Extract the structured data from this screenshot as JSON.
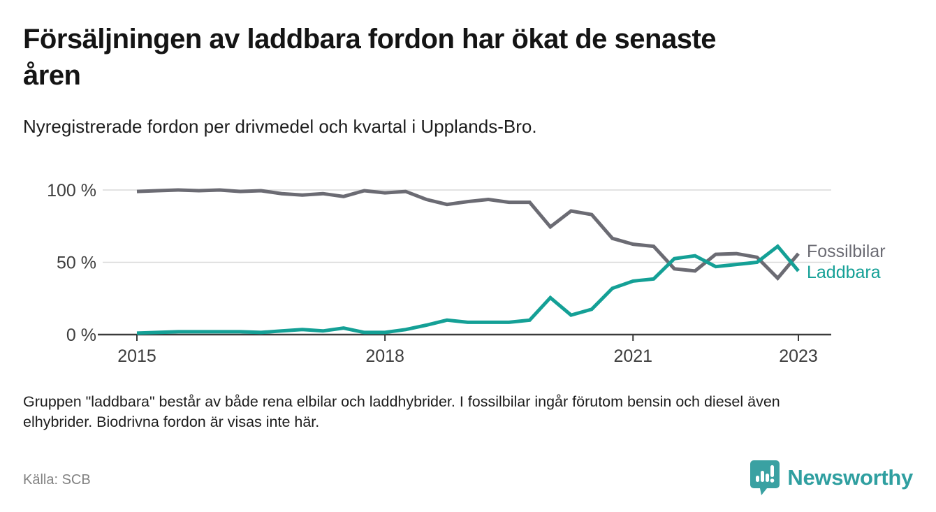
{
  "header": {
    "title_lines": [
      "Försäljningen av laddbara fordon har ökat de senaste",
      "åren"
    ],
    "subtitle": "Nyregistrerade fordon per drivmedel och kvartal i Upplands-Bro."
  },
  "footer": {
    "note_lines": [
      "Gruppen \"laddbara\" består av både rena elbilar och laddhybrider. I fossilbilar ingår förutom bensin och diesel även",
      "elhybrider. Biodrivna fordon är visas inte här."
    ],
    "source": "Källa: SCB",
    "brand_name": "Newsworthy"
  },
  "colors": {
    "fossil_gray": "#6b6b73",
    "laddbara_teal": "#14a096",
    "grid": "#d9d9d9",
    "axis": "#3b3b3b",
    "tick_text": "#3d3d3d",
    "logo_teal": "#3aa1a2",
    "brand_text_teal": "#2f9fa0"
  },
  "chart_data": {
    "type": "line",
    "title": "Nyregistrerade fordon per drivmedel och kvartal i Upplands-Bro",
    "xlabel": "",
    "ylabel": "",
    "ylim": [
      0,
      100
    ],
    "grid": "horizontal",
    "legend_position": "right-of-line-end",
    "categories": [
      "2015 Q1",
      "2015 Q2",
      "2015 Q3",
      "2015 Q4",
      "2016 Q1",
      "2016 Q2",
      "2016 Q3",
      "2016 Q4",
      "2017 Q1",
      "2017 Q2",
      "2017 Q3",
      "2017 Q4",
      "2018 Q1",
      "2018 Q2",
      "2018 Q3",
      "2018 Q4",
      "2019 Q1",
      "2019 Q2",
      "2019 Q3",
      "2019 Q4",
      "2020 Q1",
      "2020 Q2",
      "2020 Q3",
      "2020 Q4",
      "2021 Q1",
      "2021 Q2",
      "2021 Q3",
      "2021 Q4",
      "2022 Q1",
      "2022 Q2",
      "2022 Q3",
      "2022 Q4",
      "2023 Q1"
    ],
    "series": [
      {
        "name": "Fossilbilar",
        "color": "#6b6b73",
        "values": [
          99,
          99.5,
          100,
          99.5,
          100,
          99,
          99.5,
          97.5,
          96.5,
          97.5,
          95.5,
          99.5,
          98,
          99,
          93.5,
          90,
          92,
          93.5,
          91.5,
          91.5,
          74.5,
          85.5,
          83,
          66.5,
          62.5,
          61,
          45.5,
          44,
          55.5,
          56,
          53.5,
          39,
          56
        ]
      },
      {
        "name": "Laddbara",
        "color": "#14a096",
        "values": [
          1,
          1.5,
          2,
          2,
          2,
          2,
          1.5,
          2.5,
          3.5,
          2.5,
          4.5,
          1.5,
          1.5,
          3.5,
          6.5,
          10,
          8.5,
          8.5,
          8.5,
          10,
          25.5,
          13.5,
          17.5,
          32,
          37,
          38.5,
          52.5,
          54.5,
          47,
          48.5,
          50,
          61,
          44
        ]
      }
    ],
    "x_ticks": [
      {
        "index": 0,
        "label": "2015"
      },
      {
        "index": 12,
        "label": "2018"
      },
      {
        "index": 24,
        "label": "2021"
      },
      {
        "index": 32,
        "label": "2023"
      }
    ],
    "y_ticks": [
      {
        "value": 0,
        "label": "0 %"
      },
      {
        "value": 50,
        "label": "50 %"
      },
      {
        "value": 100,
        "label": "100 %"
      }
    ]
  }
}
